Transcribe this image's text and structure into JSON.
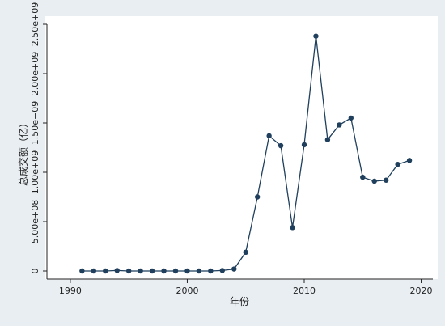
{
  "chart_data": {
    "type": "line",
    "title": "",
    "xlabel": "年份",
    "ylabel": "总成交额（亿）",
    "xlim": [
      1988,
      2021
    ],
    "ylim": [
      0,
      2500000000
    ],
    "x_ticks": [
      1990,
      2000,
      2010,
      2020
    ],
    "x_tick_labels": [
      "1990",
      "2000",
      "2010",
      "2020"
    ],
    "y_ticks": [
      0,
      500000000,
      1000000000,
      1500000000,
      2000000000,
      2500000000
    ],
    "y_tick_labels": [
      "0",
      "5.00e+08",
      "1.00e+09",
      "1.50e+09",
      "2.00e+09",
      "2.50e+09"
    ],
    "grid": false,
    "colors": {
      "series": "#1f3f5c",
      "plot_background": "#ffffff",
      "figure_background": "#e9eef2"
    },
    "series": [
      {
        "x": [
          1991,
          1992,
          1993,
          1994,
          1995,
          1996,
          1997,
          1998,
          1999,
          2000,
          2001,
          2002,
          2003,
          2004,
          2005,
          2006,
          2007,
          2008,
          2009,
          2010,
          2011,
          2012,
          2013,
          2014,
          2015,
          2016,
          2017,
          2018,
          2019
        ],
        "y": [
          0,
          0,
          0,
          5000000,
          0,
          0,
          0,
          0,
          0,
          0,
          0,
          0,
          5000000,
          20000000,
          190000000,
          750000000,
          1370000000,
          1270000000,
          440000000,
          1280000000,
          2380000000,
          1330000000,
          1480000000,
          1550000000,
          950000000,
          910000000,
          920000000,
          1080000000,
          1120000000
        ]
      }
    ]
  }
}
